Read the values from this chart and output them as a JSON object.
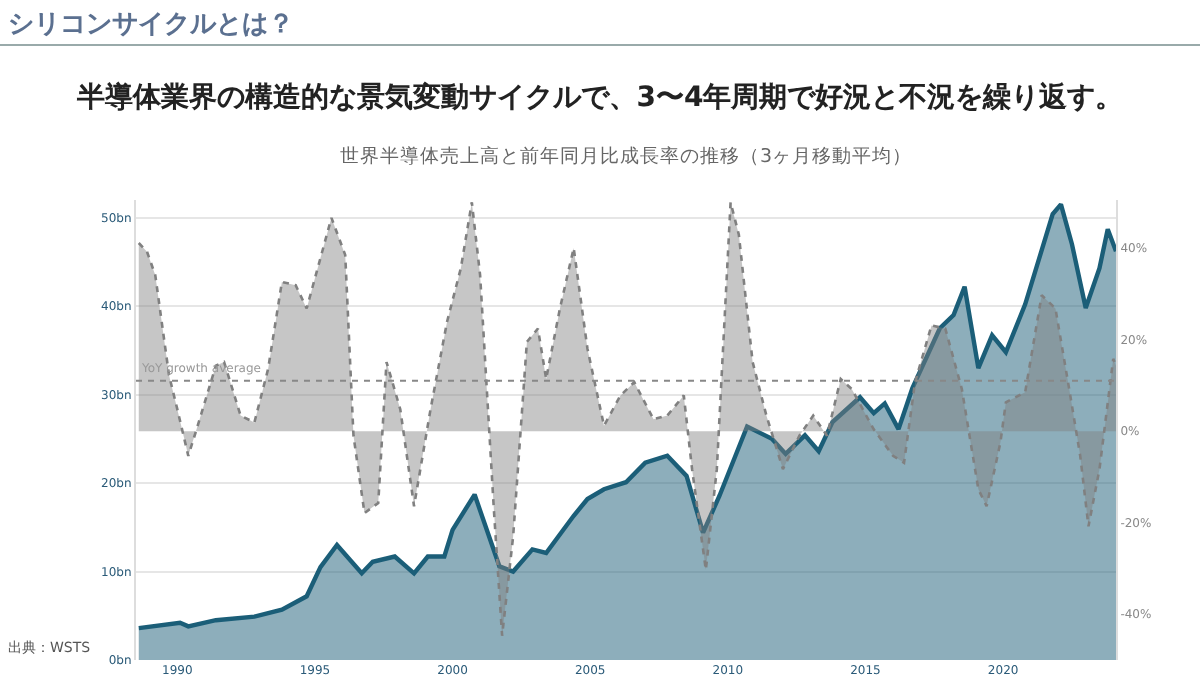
{
  "chart_data": {
    "type": "area",
    "title": "シリコンサイクルとは？",
    "subtitle": "半導体業界の構造的な景気変動サイクルで、3〜4年周期で好況と不況を繰り返す。",
    "annotations": [
      "世界半導体売上高と前年同月比成長率の推移（3ヶ月移動平均）",
      "出典：WSTS"
    ],
    "series": [
      {
        "color": "#1b5e78",
        "line_style": "solid",
        "x": [
          1988.6,
          1990.1,
          1990.4,
          1991.4,
          1992.8,
          1993.8,
          1994.7,
          1995.2,
          1995.8,
          1996.7,
          1997.1,
          1997.9,
          1998.6,
          1999.1,
          1999.7,
          2000.0,
          2000.8,
          2001.7,
          2002.2,
          2002.9,
          2003.4,
          2004.4,
          2004.9,
          2005.5,
          2006.3,
          2007.0,
          2007.8,
          2008.5,
          2009.1,
          2009.7,
          2010.7,
          2011.6,
          2012.1,
          2012.8,
          2013.3,
          2013.8,
          2014.8,
          2015.3,
          2015.7,
          2016.2,
          2016.7,
          2017.7,
          2018.2,
          2018.6,
          2019.1,
          2019.6,
          2020.1,
          2020.8,
          2021.8,
          2022.1,
          2022.5,
          2023.0,
          2023.5,
          2023.8,
          2024.1
        ],
        "values": [
          3.6,
          4.2,
          3.8,
          4.5,
          4.9,
          5.7,
          7.2,
          10.5,
          13.0,
          9.8,
          11.1,
          11.7,
          9.8,
          11.7,
          11.7,
          14.7,
          18.7,
          10.6,
          10.0,
          12.5,
          12.1,
          16.3,
          18.2,
          19.3,
          20.1,
          22.3,
          23.1,
          20.8,
          14.4,
          18.6,
          26.4,
          25.0,
          23.3,
          25.4,
          23.6,
          26.9,
          29.7,
          27.9,
          29.0,
          26.1,
          30.7,
          37.5,
          39.0,
          42.2,
          33.0,
          36.7,
          34.8,
          40.2,
          50.4,
          51.5,
          47.0,
          39.8,
          44.3,
          48.7,
          46.2
        ]
      },
      {
        "axis": "y2",
        "color": "#808080",
        "line_style": "dotted",
        "x": [
          1988.6,
          1988.9,
          1989.2,
          1989.7,
          1990.0,
          1990.4,
          1990.7,
          1991.4,
          1991.7,
          1992.3,
          1992.8,
          1993.3,
          1993.8,
          1994.3,
          1994.7,
          1995.2,
          1995.6,
          1996.1,
          1996.4,
          1996.8,
          1997.3,
          1997.6,
          1998.1,
          1998.6,
          1999.2,
          1999.8,
          2000.3,
          2000.7,
          2001.0,
          2001.5,
          2001.8,
          2002.2,
          2002.7,
          2003.1,
          2003.4,
          2003.9,
          2004.4,
          2004.9,
          2005.5,
          2006.1,
          2006.6,
          2007.3,
          2007.8,
          2008.4,
          2008.7,
          2009.2,
          2009.6,
          2010.1,
          2010.4,
          2010.9,
          2011.4,
          2012.0,
          2012.6,
          2013.1,
          2013.6,
          2014.1,
          2014.5,
          2015.3,
          2016.0,
          2016.4,
          2016.8,
          2017.4,
          2017.9,
          2018.5,
          2019.1,
          2019.4,
          2019.9,
          2020.1,
          2020.8,
          2021.4,
          2021.9,
          2022.4,
          2022.8,
          2023.1,
          2023.5,
          2024.0,
          2024.1
        ],
        "values": [
          41.1,
          39.2,
          34.1,
          12.2,
          4.8,
          -5.4,
          0.4,
          14.3,
          15.1,
          3.4,
          1.9,
          13.6,
          32.6,
          31.9,
          26.8,
          37.8,
          46.6,
          38.5,
          -1.0,
          -17.9,
          -15.7,
          15.1,
          4.8,
          -16.4,
          4.8,
          23.9,
          35.6,
          50,
          34.1,
          -17.1,
          -44.7,
          -23.0,
          19.5,
          22.4,
          11.4,
          26.8,
          40.0,
          18.0,
          1.2,
          7.8,
          10.7,
          2.6,
          3.4,
          7.8,
          -8.3,
          -30.3,
          -8.3,
          50,
          42.9,
          15.1,
          3.4,
          -8.3,
          -1.0,
          3.4,
          -1.0,
          11.4,
          9.2,
          0.4,
          -5.4,
          -6.9,
          10.7,
          23.1,
          22.4,
          9.2,
          -12.7,
          -16.4,
          -2.5,
          6.3,
          8.5,
          29.7,
          26.8,
          9.2,
          -5.4,
          -20.8,
          -8.3,
          15.8,
          14.3
        ]
      }
    ],
    "xlim": [
      1988.5,
      2024.1
    ],
    "xticks": [
      1990,
      1995,
      2000,
      2005,
      2010,
      2015,
      2020
    ],
    "ylim": [
      0,
      52
    ],
    "yticks": [
      {
        "value": 0,
        "label": "0bn"
      },
      {
        "value": 10,
        "label": "10bn"
      },
      {
        "value": 20,
        "label": "20bn"
      },
      {
        "value": 30,
        "label": "30bn"
      },
      {
        "value": 40,
        "label": "40bn"
      },
      {
        "value": 50,
        "label": "50bn"
      }
    ],
    "y2lim": [
      -50,
      50.5
    ],
    "y2ticks": [
      {
        "value": -40,
        "label": "-40%"
      },
      {
        "value": -20,
        "label": "-20%"
      },
      {
        "value": 0,
        "label": "0%"
      },
      {
        "value": 20,
        "label": "20%"
      },
      {
        "value": 40,
        "label": "40%"
      }
    ],
    "ref_lines": [
      {
        "axis": "y2",
        "value": 11,
        "label": "YoY growth average",
        "color": "#888888",
        "line_style": "dotted"
      }
    ],
    "grid": "y"
  }
}
